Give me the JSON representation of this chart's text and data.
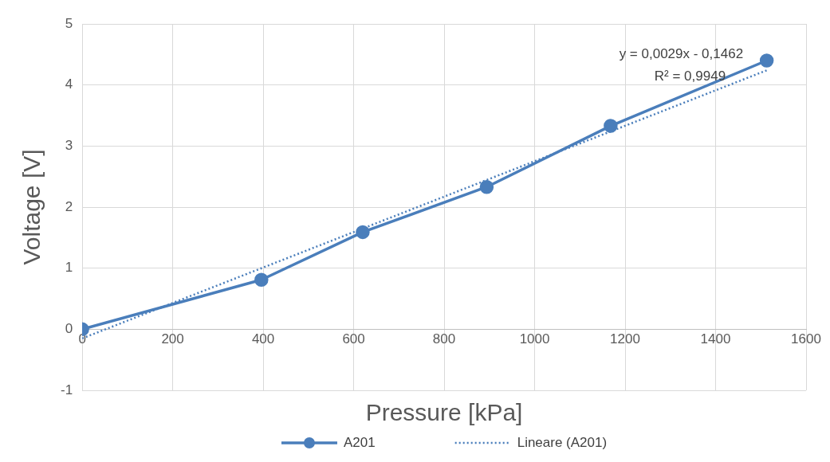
{
  "chart_data": {
    "type": "line",
    "xlabel": "Pressure [kPa]",
    "ylabel": "Voltage [V]",
    "xlim": [
      0,
      1600
    ],
    "xticks": [
      0,
      200,
      400,
      600,
      800,
      1000,
      1200,
      1400,
      1600
    ],
    "ylim": [
      -1,
      5
    ],
    "yticks": [
      -1,
      0,
      1,
      2,
      3,
      4,
      5
    ],
    "grid": true,
    "legend": "bottom",
    "series": [
      {
        "name": "A201",
        "color": "#4a7ebb",
        "x": [
          0,
          396,
          620,
          894,
          1168,
          1513
        ],
        "values": [
          0,
          0.81,
          1.59,
          2.33,
          3.33,
          4.4
        ],
        "marker": "circle",
        "line_style": "solid"
      },
      {
        "name": "Lineare (A201)",
        "type": "line",
        "color": "#4a7ebb",
        "x": [
          0,
          1513
        ],
        "values": [
          -0.15,
          4.24
        ],
        "marker": "none",
        "line_style": "dotted"
      }
    ],
    "annotations": [
      "y = 0,0029x - 0,1462",
      "R² = 0,9949"
    ]
  }
}
